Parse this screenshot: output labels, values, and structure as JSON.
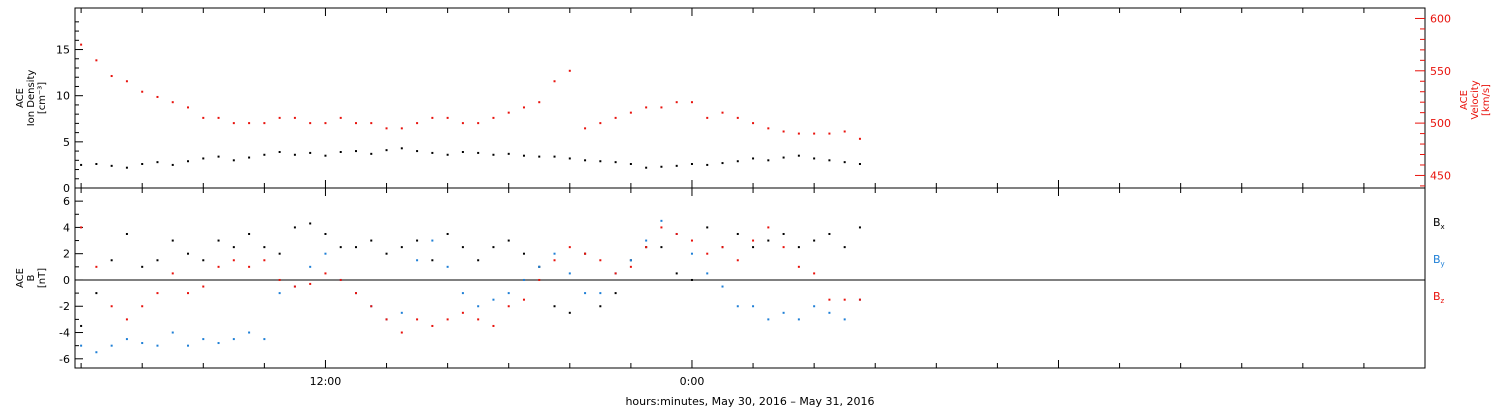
{
  "footer_label": "hours:minutes, May 30, 2016 – May 31, 2016",
  "colors": {
    "black": "#000000",
    "red": "#e8120c",
    "blue": "#1e7fd6"
  },
  "chart_data": [
    {
      "type": "scatter",
      "panel": "plasma",
      "ylabel_left": [
        "ACE",
        "Ion Density",
        "[cm⁻³]"
      ],
      "ylabel_right": [
        "ACE",
        "Velocity",
        "[km/s]"
      ],
      "ylim_left": [
        0,
        19.5
      ],
      "ylim_right": [
        438,
        610
      ],
      "yticks_left": [
        "0",
        "5",
        "10",
        "15"
      ],
      "yticks_right": [
        "450",
        "500",
        "550",
        "600"
      ],
      "x_unit": "hours since 2016-05-30 00:00",
      "xlim": [
        3.8,
        48
      ],
      "series": [
        {
          "color": "#000000",
          "axis": "left",
          "x": [
            4.0,
            4.5,
            5.0,
            5.5,
            6.0,
            6.5,
            7.0,
            7.5,
            8.0,
            8.5,
            9.0,
            9.5,
            10.0,
            10.5,
            11.0,
            11.5,
            12.0,
            12.5,
            13.0,
            13.5,
            14.0,
            14.5,
            15.0,
            15.5,
            16.0,
            16.5,
            17.0,
            17.5,
            18.0,
            18.5,
            19.0,
            19.5,
            20.0,
            20.5,
            21.0,
            21.5,
            22.0,
            22.5,
            23.0,
            23.5,
            24.0,
            24.5,
            25.0,
            25.5,
            26.0,
            26.5,
            27.0,
            27.5,
            28.0,
            28.5,
            29.0,
            29.5
          ],
          "y": [
            2.5,
            2.6,
            2.4,
            2.2,
            2.6,
            2.8,
            2.5,
            2.9,
            3.2,
            3.4,
            3.0,
            3.3,
            3.6,
            3.9,
            3.6,
            3.8,
            3.5,
            3.9,
            4.0,
            3.7,
            4.1,
            4.3,
            4.0,
            3.8,
            3.6,
            3.9,
            3.8,
            3.6,
            3.7,
            3.5,
            3.4,
            3.4,
            3.2,
            3.0,
            2.9,
            2.8,
            2.6,
            2.2,
            2.3,
            2.4,
            2.6,
            2.5,
            2.7,
            2.9,
            3.2,
            3.0,
            3.3,
            3.5,
            3.2,
            3.0,
            2.8,
            2.6
          ]
        },
        {
          "color": "#e8120c",
          "axis": "right",
          "x": [
            4.0,
            4.5,
            5.0,
            5.5,
            6.0,
            6.5,
            7.0,
            7.5,
            8.0,
            8.5,
            9.0,
            9.5,
            10.0,
            10.5,
            11.0,
            11.5,
            12.0,
            12.5,
            13.0,
            13.5,
            14.0,
            14.5,
            15.0,
            15.5,
            16.0,
            16.5,
            17.0,
            17.5,
            18.0,
            18.5,
            19.0,
            19.5,
            20.0,
            20.5,
            21.0,
            21.5,
            22.0,
            22.5,
            23.0,
            23.5,
            24.0,
            24.5,
            25.0,
            25.5,
            26.0,
            26.5,
            27.0,
            27.5,
            28.0,
            28.5,
            29.0,
            29.5
          ],
          "y": [
            575,
            560,
            545,
            540,
            530,
            525,
            520,
            515,
            505,
            505,
            500,
            500,
            500,
            505,
            505,
            500,
            500,
            505,
            500,
            500,
            495,
            495,
            500,
            505,
            505,
            500,
            500,
            505,
            510,
            515,
            520,
            540,
            550,
            495,
            500,
            505,
            510,
            515,
            515,
            520,
            520,
            505,
            510,
            505,
            500,
            495,
            492,
            490,
            490,
            490,
            492,
            485
          ]
        }
      ]
    },
    {
      "type": "scatter",
      "panel": "magnetic",
      "ylabel_left": [
        "ACE",
        "B",
        "[nT]"
      ],
      "ylim": [
        -6.7,
        7.0
      ],
      "yticks": [
        "-6",
        "-4",
        "-2",
        "0",
        "2",
        "4",
        "6"
      ],
      "x_unit": "hours since 2016-05-30 00:00",
      "xlim": [
        3.8,
        48
      ],
      "xtick_labels": [
        {
          "x": 12,
          "label": "12:00"
        },
        {
          "x": 24,
          "label": "0:00"
        }
      ],
      "legend": [
        {
          "base": "B",
          "sub": "x",
          "color": "#000000"
        },
        {
          "base": "B",
          "sub": "y",
          "color": "#1e7fd6"
        },
        {
          "base": "B",
          "sub": "z",
          "color": "#e8120c"
        }
      ],
      "series": [
        {
          "name": "Bx",
          "color": "#000000",
          "x": [
            4.0,
            4.5,
            5.0,
            5.5,
            6.0,
            6.5,
            7.0,
            7.5,
            8.0,
            8.5,
            9.0,
            9.5,
            10.0,
            10.5,
            11.0,
            11.5,
            12.0,
            12.5,
            13.0,
            13.5,
            14.0,
            14.5,
            15.0,
            15.5,
            16.0,
            16.5,
            17.0,
            17.5,
            18.0,
            18.5,
            19.0,
            19.5,
            20.0,
            20.5,
            21.0,
            21.5,
            22.0,
            22.5,
            23.0,
            23.5,
            24.0,
            24.5,
            25.0,
            25.5,
            26.0,
            26.5,
            27.0,
            27.5,
            28.0,
            28.5,
            29.0,
            29.5
          ],
          "y": [
            -3.5,
            -1.0,
            1.5,
            3.5,
            1.0,
            1.5,
            3.0,
            2.0,
            1.5,
            3.0,
            2.5,
            3.5,
            2.5,
            2.0,
            4.0,
            4.3,
            3.5,
            2.5,
            2.5,
            3.0,
            2.0,
            2.5,
            3.0,
            1.5,
            3.5,
            2.5,
            1.5,
            2.5,
            3.0,
            2.0,
            1.0,
            -2.0,
            -2.5,
            2.0,
            -2.0,
            -1.0,
            1.5,
            2.5,
            2.5,
            0.5,
            0.0,
            4.0,
            2.5,
            3.5,
            2.5,
            3.0,
            3.5,
            2.5,
            3.0,
            3.5,
            2.5,
            4.0
          ]
        },
        {
          "name": "By",
          "color": "#1e7fd6",
          "x": [
            4.0,
            4.5,
            5.0,
            5.5,
            6.0,
            6.5,
            7.0,
            7.5,
            8.0,
            8.5,
            9.0,
            9.5,
            10.0,
            10.5,
            11.0,
            11.5,
            12.0,
            12.5,
            13.0,
            13.5,
            14.0,
            14.5,
            15.0,
            15.5,
            16.0,
            16.5,
            17.0,
            17.5,
            18.0,
            18.5,
            19.0,
            19.5,
            20.0,
            20.5,
            21.0,
            21.5,
            22.0,
            22.5,
            23.0,
            23.5,
            24.0,
            24.5,
            25.0,
            25.5,
            26.0,
            26.5,
            27.0,
            27.5,
            28.0,
            28.5,
            29.0,
            29.5
          ],
          "y": [
            -5.0,
            -5.5,
            -5.0,
            -4.5,
            -4.8,
            -5.0,
            -4.0,
            -5.0,
            -4.5,
            -4.8,
            -4.5,
            -4.0,
            -4.5,
            -1.0,
            -0.5,
            1.0,
            2.0,
            0.0,
            -1.0,
            -2.0,
            -3.0,
            -2.5,
            1.5,
            3.0,
            1.0,
            -1.0,
            -2.0,
            -1.5,
            -1.0,
            0.0,
            1.0,
            2.0,
            0.5,
            -1.0,
            -1.0,
            0.5,
            1.5,
            3.0,
            4.5,
            3.5,
            2.0,
            0.5,
            -0.5,
            -2.0,
            -2.0,
            -3.0,
            -2.5,
            -3.0,
            -2.0,
            -2.5,
            -3.0,
            -1.5
          ]
        },
        {
          "name": "Bz",
          "color": "#e8120c",
          "x": [
            4.0,
            4.5,
            5.0,
            5.5,
            6.0,
            6.5,
            7.0,
            7.5,
            8.0,
            8.5,
            9.0,
            9.5,
            10.0,
            10.5,
            11.0,
            11.5,
            12.0,
            12.5,
            13.0,
            13.5,
            14.0,
            14.5,
            15.0,
            15.5,
            16.0,
            16.5,
            17.0,
            17.5,
            18.0,
            18.5,
            19.0,
            19.5,
            20.0,
            20.5,
            21.0,
            21.5,
            22.0,
            22.5,
            23.0,
            23.5,
            24.0,
            24.5,
            25.0,
            25.5,
            26.0,
            26.5,
            27.0,
            27.5,
            28.0,
            28.5,
            29.0,
            29.5
          ],
          "y": [
            4.0,
            1.0,
            -2.0,
            -3.0,
            -2.0,
            -1.0,
            0.5,
            -1.0,
            -0.5,
            1.0,
            1.5,
            1.0,
            1.5,
            0.0,
            -0.5,
            -0.3,
            0.5,
            0.0,
            -1.0,
            -2.0,
            -3.0,
            -4.0,
            -3.0,
            -3.5,
            -3.0,
            -2.5,
            -3.0,
            -3.5,
            -2.0,
            -1.5,
            0.0,
            1.5,
            2.5,
            2.0,
            1.5,
            0.5,
            1.0,
            2.5,
            4.0,
            3.5,
            3.0,
            2.0,
            2.5,
            1.5,
            3.0,
            4.0,
            2.5,
            1.0,
            0.5,
            -1.5,
            -1.5,
            -1.5
          ]
        }
      ]
    }
  ]
}
